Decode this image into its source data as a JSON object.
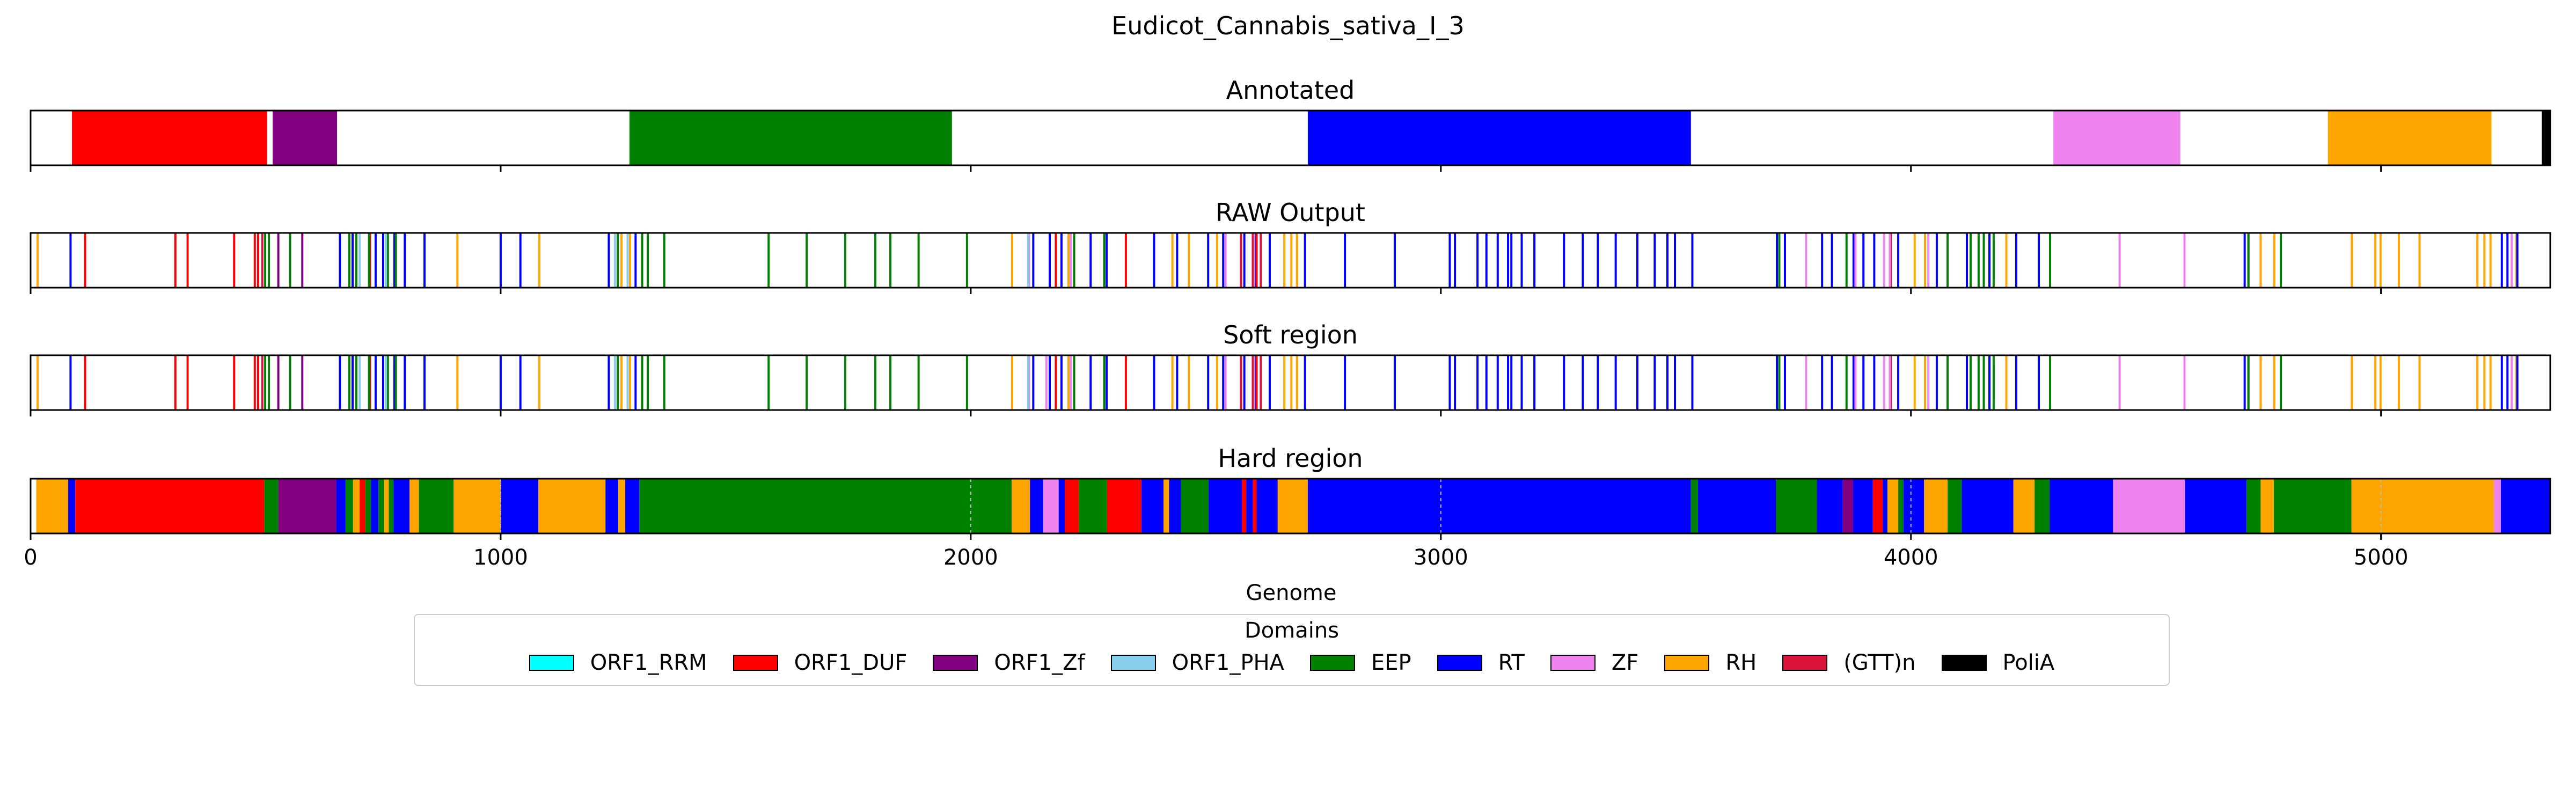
{
  "chart_data": {
    "type": "bar",
    "title": "Eudicot_Cannabis_sativa_I_3",
    "xlabel": "Genome",
    "xlim": [
      0,
      5360
    ],
    "xticks": [
      0,
      1000,
      2000,
      3000,
      4000,
      5000
    ],
    "grid": "vertical dashed gridlines on Hard region panel",
    "legend": {
      "title": "Domains",
      "placement": "below plot, centered",
      "entries": [
        {
          "label": "ORF1_RRM",
          "color": "#00ffff"
        },
        {
          "label": "ORF1_DUF",
          "color": "#ff0000"
        },
        {
          "label": "ORF1_Zf",
          "color": "#800080"
        },
        {
          "label": "ORF1_PHA",
          "color": "#87ceeb"
        },
        {
          "label": "EEP",
          "color": "#008000"
        },
        {
          "label": "RT",
          "color": "#0000ff"
        },
        {
          "label": "ZF",
          "color": "#ee82ee"
        },
        {
          "label": "RH",
          "color": "#ffa500"
        },
        {
          "label": "(GTT)n",
          "color": "#dc143c"
        },
        {
          "label": "PoliA",
          "color": "#000000"
        }
      ]
    },
    "panels": [
      {
        "title": "Annotated",
        "kind": "regions",
        "regions": [
          {
            "domain": "ORF1_DUF",
            "start": 88,
            "end": 503
          },
          {
            "domain": "ORF1_Zf",
            "start": 515,
            "end": 652
          },
          {
            "domain": "EEP",
            "start": 1274,
            "end": 1960
          },
          {
            "domain": "RT",
            "start": 2717,
            "end": 3532
          },
          {
            "domain": "ZF",
            "start": 4303,
            "end": 4573
          },
          {
            "domain": "RH",
            "start": 4887,
            "end": 5235
          },
          {
            "domain": "PoliA",
            "start": 5342,
            "end": 5360
          }
        ]
      },
      {
        "title": "RAW Output",
        "kind": "marks",
        "marks": [
          {
            "domain": "RH",
            "x": [
              15,
              908,
              1082,
              1249,
              1257,
              1275,
              2088,
              2208,
              2429,
              2464,
              2524,
              2667,
              2682,
              2694,
              4008,
              4030,
              4203,
              4744,
              4773,
              4938,
              4988,
              4999,
              5038,
              5082,
              5205,
              5220,
              5233,
              5288
            ]
          },
          {
            "domain": "RT",
            "x": [
              85,
              658,
              685,
              734,
              750,
              774,
              796,
              838,
              1000,
              1042,
              1230,
              1287,
              2133,
              2168,
              2193,
              2255,
              2289,
              2390,
              2439,
              2505,
              2537,
              2582,
              2606,
              2636,
              2711,
              2796,
              2902,
              3019,
              3030,
              3078,
              3097,
              3121,
              3143,
              3150,
              3172,
              3199,
              3262,
              3302,
              3334,
              3372,
              3418,
              3455,
              3482,
              3498,
              3535,
              3715,
              3732,
              3811,
              3832,
              3878,
              3899,
              3922,
              3973,
              4055,
              4119,
              4167,
              4224,
              4272,
              4710,
              4718,
              5257,
              5269,
              5290
            ]
          },
          {
            "domain": "ORF1_DUF",
            "x": [
              116,
              308,
              334,
              433,
              477,
              484,
              722,
              2181,
              2330,
              2608
            ]
          },
          {
            "domain": "(GTT)n",
            "x": [
              493,
              2575,
              2600,
              2617,
              3957
            ]
          },
          {
            "domain": "EEP",
            "x": [
              499,
              507,
              552,
              678,
              693,
              720,
              760,
              777,
              1249,
              1301,
              1313,
              1348,
              1570,
              1651,
              1733,
              1797,
              1829,
              1889,
              1992,
              2220,
              2284,
              3720,
              3863,
              4078,
              4127,
              4144,
              4155,
              4176,
              4296,
              4718,
              4787
            ]
          },
          {
            "domain": "ORF1_Zf",
            "x": [
              527,
              578
            ]
          },
          {
            "domain": "ZF",
            "x": [
              2124,
              2213,
              2542,
              3777,
              3882,
              3943,
              3955,
              4037,
              4444,
              4582,
              5278
            ]
          },
          {
            "domain": "ORF1_PHA",
            "x": [
              700,
              756,
              1243,
              1270,
              2122
            ]
          }
        ]
      },
      {
        "title": "Soft region",
        "kind": "marks",
        "marks": [
          {
            "domain": "RH",
            "x": [
              15,
              908,
              1082,
              1249,
              1257,
              1275,
              2088,
              2208,
              2429,
              2464,
              2524,
              2667,
              2682,
              2694,
              4008,
              4030,
              4203,
              4744,
              4773,
              4938,
              4988,
              4999,
              5038,
              5082,
              5205,
              5220,
              5233,
              5288
            ]
          },
          {
            "domain": "RT",
            "x": [
              85,
              658,
              685,
              734,
              750,
              774,
              796,
              838,
              1000,
              1042,
              1230,
              1287,
              2133,
              2168,
              2193,
              2255,
              2289,
              2390,
              2439,
              2505,
              2537,
              2582,
              2606,
              2636,
              2711,
              2796,
              2902,
              3019,
              3030,
              3078,
              3097,
              3121,
              3143,
              3150,
              3172,
              3199,
              3262,
              3302,
              3334,
              3372,
              3418,
              3455,
              3482,
              3498,
              3535,
              3715,
              3732,
              3811,
              3832,
              3878,
              3899,
              3922,
              3973,
              4055,
              4119,
              4167,
              4224,
              4272,
              4710,
              4718,
              5257,
              5269,
              5290
            ]
          },
          {
            "domain": "ORF1_DUF",
            "x": [
              116,
              308,
              334,
              433,
              477,
              484,
              722,
              2181,
              2330,
              2608
            ]
          },
          {
            "domain": "(GTT)n",
            "x": [
              493,
              2575,
              2600,
              2617,
              3957
            ]
          },
          {
            "domain": "EEP",
            "x": [
              499,
              507,
              552,
              678,
              693,
              720,
              760,
              777,
              1249,
              1301,
              1313,
              1348,
              1570,
              1651,
              1733,
              1797,
              1829,
              1889,
              1992,
              2220,
              2284,
              3720,
              3863,
              4078,
              4127,
              4144,
              4155,
              4176,
              4296,
              4718,
              4787
            ]
          },
          {
            "domain": "ORF1_Zf",
            "x": [
              527,
              578
            ]
          },
          {
            "domain": "ZF",
            "x": [
              2124,
              2161,
              2213,
              2542,
              3777,
              3882,
              3943,
              3955,
              4037,
              4444,
              4582,
              5278
            ]
          },
          {
            "domain": "ORF1_PHA",
            "x": [
              700,
              756,
              1243,
              1270,
              2122
            ]
          }
        ]
      },
      {
        "title": "Hard region",
        "kind": "regions",
        "regions": [
          {
            "domain": "RH",
            "start": 12,
            "end": 80
          },
          {
            "domain": "RT",
            "start": 80,
            "end": 95
          },
          {
            "domain": "ORF1_DUF",
            "start": 95,
            "end": 497
          },
          {
            "domain": "EEP",
            "start": 497,
            "end": 527
          },
          {
            "domain": "ORF1_Zf",
            "start": 527,
            "end": 650
          },
          {
            "domain": "RT",
            "start": 650,
            "end": 670
          },
          {
            "domain": "EEP",
            "start": 670,
            "end": 686
          },
          {
            "domain": "RH",
            "start": 686,
            "end": 700
          },
          {
            "domain": "ORF1_DUF",
            "start": 700,
            "end": 712
          },
          {
            "domain": "EEP",
            "start": 712,
            "end": 724
          },
          {
            "domain": "RT",
            "start": 724,
            "end": 740
          },
          {
            "domain": "EEP",
            "start": 740,
            "end": 752
          },
          {
            "domain": "RH",
            "start": 752,
            "end": 762
          },
          {
            "domain": "EEP",
            "start": 762,
            "end": 772
          },
          {
            "domain": "RT",
            "start": 772,
            "end": 806
          },
          {
            "domain": "RH",
            "start": 806,
            "end": 826
          },
          {
            "domain": "EEP",
            "start": 826,
            "end": 900
          },
          {
            "domain": "RH",
            "start": 900,
            "end": 1000
          },
          {
            "domain": "RT",
            "start": 1000,
            "end": 1080
          },
          {
            "domain": "RH",
            "start": 1080,
            "end": 1223
          },
          {
            "domain": "RT",
            "start": 1223,
            "end": 1250
          },
          {
            "domain": "RH",
            "start": 1250,
            "end": 1265
          },
          {
            "domain": "RT",
            "start": 1265,
            "end": 1295
          },
          {
            "domain": "EEP",
            "start": 1295,
            "end": 2087
          },
          {
            "domain": "RH",
            "start": 2087,
            "end": 2126
          },
          {
            "domain": "RT",
            "start": 2126,
            "end": 2154
          },
          {
            "domain": "ZF",
            "start": 2154,
            "end": 2187
          },
          {
            "domain": "RT",
            "start": 2187,
            "end": 2200
          },
          {
            "domain": "ORF1_DUF",
            "start": 2200,
            "end": 2230
          },
          {
            "domain": "EEP",
            "start": 2230,
            "end": 2290
          },
          {
            "domain": "ORF1_DUF",
            "start": 2290,
            "end": 2363
          },
          {
            "domain": "RT",
            "start": 2363,
            "end": 2410
          },
          {
            "domain": "RH",
            "start": 2410,
            "end": 2422
          },
          {
            "domain": "RT",
            "start": 2422,
            "end": 2447
          },
          {
            "domain": "EEP",
            "start": 2447,
            "end": 2506
          },
          {
            "domain": "RT",
            "start": 2506,
            "end": 2577
          },
          {
            "domain": "ORF1_DUF",
            "start": 2577,
            "end": 2586
          },
          {
            "domain": "RT",
            "start": 2586,
            "end": 2600
          },
          {
            "domain": "ORF1_DUF",
            "start": 2600,
            "end": 2608
          },
          {
            "domain": "RT",
            "start": 2608,
            "end": 2653
          },
          {
            "domain": "RH",
            "start": 2653,
            "end": 2717
          },
          {
            "domain": "RT",
            "start": 2717,
            "end": 3532
          },
          {
            "domain": "EEP",
            "start": 3532,
            "end": 3547
          },
          {
            "domain": "RT",
            "start": 3547,
            "end": 3713
          },
          {
            "domain": "EEP",
            "start": 3713,
            "end": 3800
          },
          {
            "domain": "RT",
            "start": 3800,
            "end": 3855
          },
          {
            "domain": "ORF1_Zf",
            "start": 3855,
            "end": 3877
          },
          {
            "domain": "RT",
            "start": 3877,
            "end": 3919
          },
          {
            "domain": "ORF1_DUF",
            "start": 3919,
            "end": 3940
          },
          {
            "domain": "RT",
            "start": 3940,
            "end": 3950
          },
          {
            "domain": "RH",
            "start": 3950,
            "end": 3973
          },
          {
            "domain": "EEP",
            "start": 3973,
            "end": 3984
          },
          {
            "domain": "RT",
            "start": 3984,
            "end": 4028
          },
          {
            "domain": "RH",
            "start": 4028,
            "end": 4078
          },
          {
            "domain": "EEP",
            "start": 4078,
            "end": 4108
          },
          {
            "domain": "RT",
            "start": 4108,
            "end": 4218
          },
          {
            "domain": "RH",
            "start": 4218,
            "end": 4263
          },
          {
            "domain": "EEP",
            "start": 4263,
            "end": 4295
          },
          {
            "domain": "RT",
            "start": 4295,
            "end": 4430
          },
          {
            "domain": "ZF",
            "start": 4430,
            "end": 4583
          },
          {
            "domain": "RT",
            "start": 4583,
            "end": 4714
          },
          {
            "domain": "EEP",
            "start": 4714,
            "end": 4744
          },
          {
            "domain": "RH",
            "start": 4744,
            "end": 4772
          },
          {
            "domain": "EEP",
            "start": 4772,
            "end": 4937
          },
          {
            "domain": "RH",
            "start": 4937,
            "end": 5240
          },
          {
            "domain": "ZF",
            "start": 5240,
            "end": 5255
          },
          {
            "domain": "RT",
            "start": 5255,
            "end": 5360
          }
        ]
      }
    ]
  }
}
